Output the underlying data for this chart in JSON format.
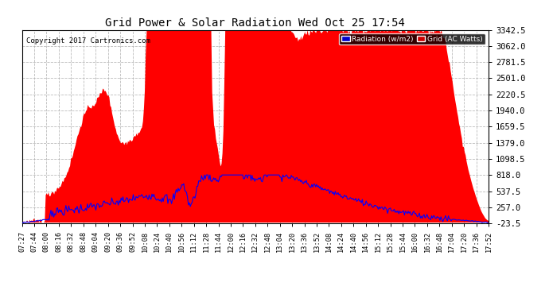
{
  "title": "Grid Power & Solar Radiation Wed Oct 25 17:54",
  "copyright": "Copyright 2017 Cartronics.com",
  "background_color": "#ffffff",
  "plot_bg_color": "#ffffff",
  "grid_color": "#aaaaaa",
  "yticks": [
    -23.5,
    257.0,
    537.5,
    818.0,
    1098.5,
    1379.0,
    1659.5,
    1940.0,
    2220.5,
    2501.0,
    2781.5,
    3062.0,
    3342.5
  ],
  "ymin": -23.5,
  "ymax": 3342.5,
  "legend_radiation_label": "Radiation (w/m2)",
  "legend_grid_label": "Grid (AC Watts)",
  "legend_radiation_bg": "#0000cc",
  "legend_grid_bg": "#cc0000",
  "red_fill_color": "#ff0000",
  "blue_line_color": "#0000ff",
  "xtick_labels": [
    "07:27",
    "07:44",
    "08:00",
    "08:16",
    "08:32",
    "08:48",
    "09:04",
    "09:20",
    "09:36",
    "09:52",
    "10:08",
    "10:24",
    "10:40",
    "10:56",
    "11:12",
    "11:28",
    "11:44",
    "12:00",
    "12:16",
    "12:32",
    "12:48",
    "13:04",
    "13:20",
    "13:36",
    "13:52",
    "14:08",
    "14:24",
    "14:40",
    "14:56",
    "15:12",
    "15:28",
    "15:44",
    "16:00",
    "16:32",
    "16:48",
    "17:04",
    "17:20",
    "17:36",
    "17:52"
  ],
  "num_points": 500
}
